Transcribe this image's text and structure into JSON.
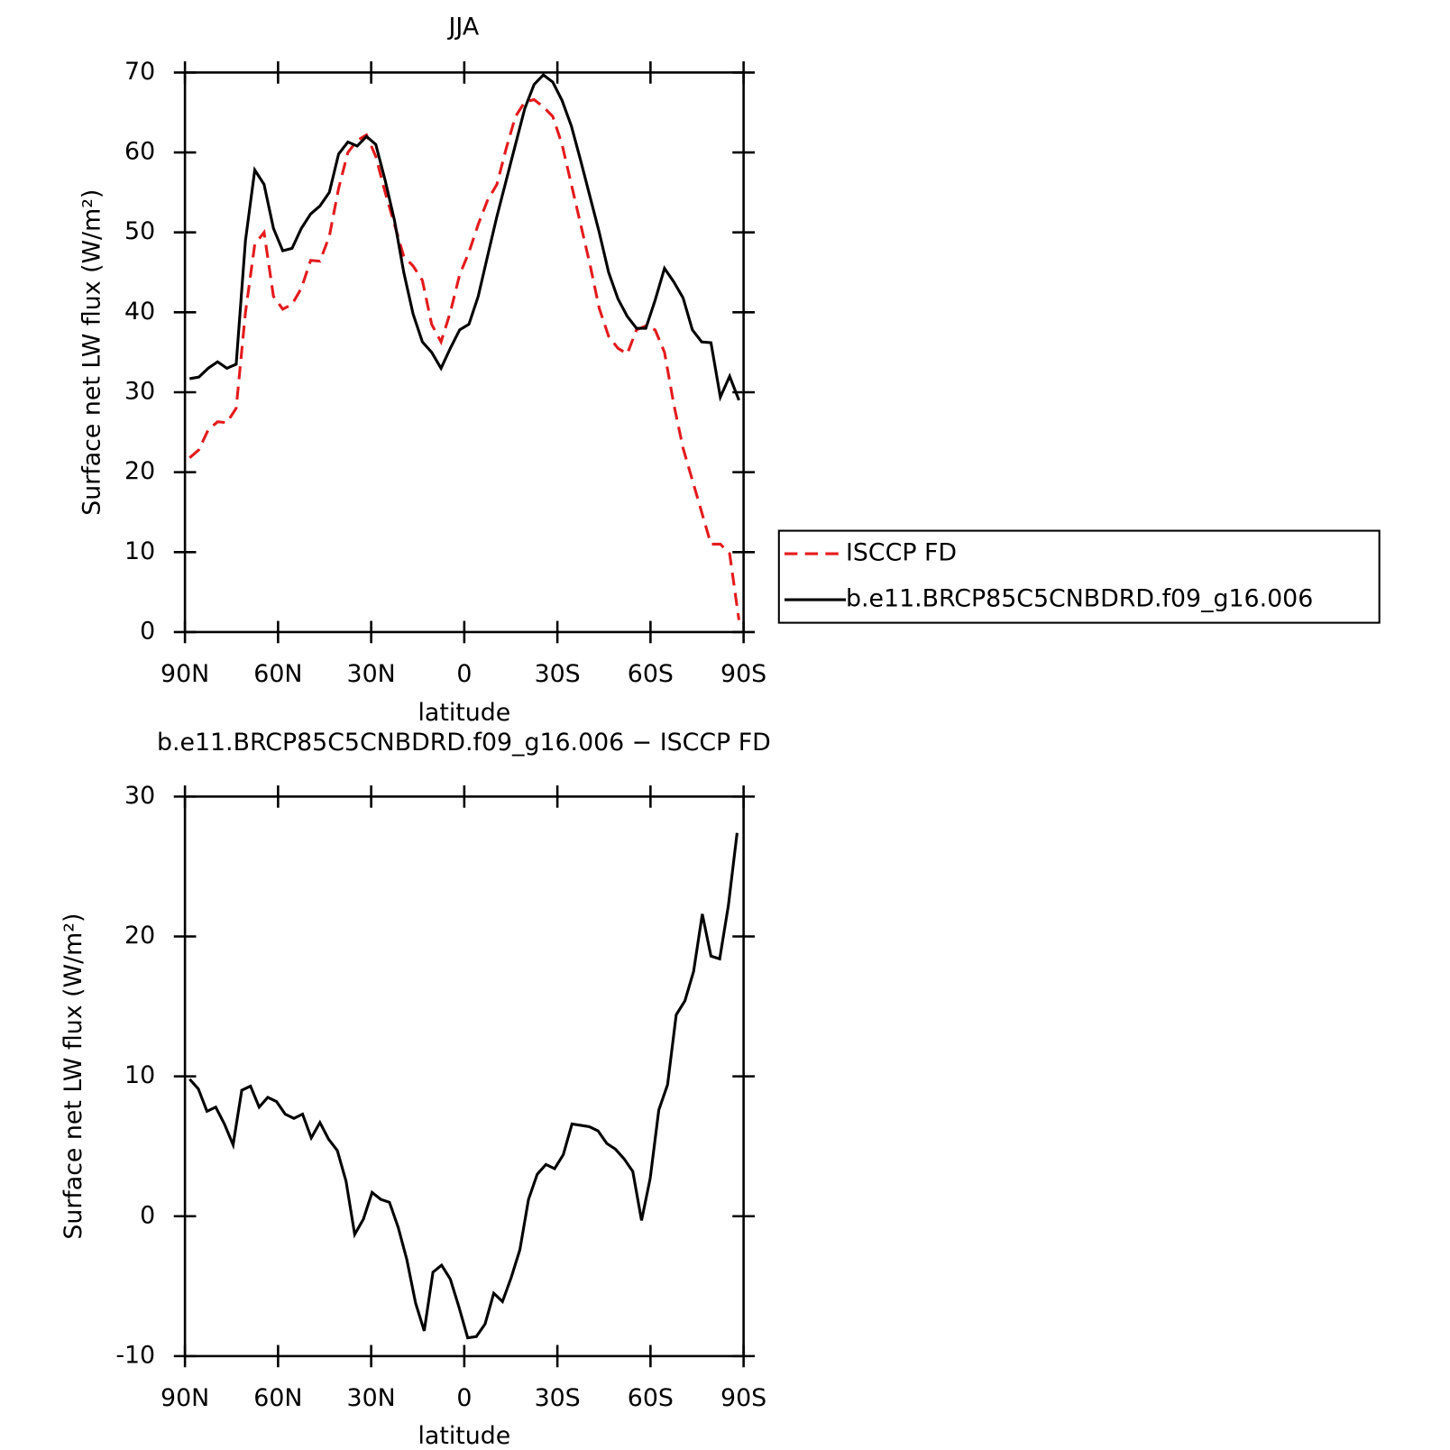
{
  "chart_data": [
    {
      "type": "line",
      "title": "JJA",
      "xlabel": "latitude",
      "ylabel": "Surface net LW flux (W/m²)",
      "x": [
        88.5,
        85.5,
        82.5,
        79.5,
        76.5,
        73.5,
        70.5,
        67.5,
        64.5,
        61.5,
        58.5,
        55.5,
        52.5,
        49.5,
        46.5,
        43.5,
        40.5,
        37.5,
        34.5,
        31.5,
        28.5,
        25.5,
        22.5,
        19.5,
        16.5,
        13.5,
        10.5,
        7.5,
        4.5,
        1.5,
        -1.5,
        -4.5,
        -7.5,
        -10.5,
        -13.5,
        -16.5,
        -19.5,
        -22.5,
        -25.5,
        -28.5,
        -31.5,
        -34.5,
        -37.5,
        -40.5,
        -43.5,
        -46.5,
        -49.5,
        -52.5,
        -55.5,
        -58.5,
        -61.5,
        -64.5,
        -67.5,
        -70.5,
        -73.5,
        -76.5,
        -79.5,
        -82.5,
        -85.5,
        -88.5
      ],
      "series": [
        {
          "name": "ISCCP FD",
          "color": "#e41a1c",
          "style": "dashed",
          "values": [
            21.8,
            22.8,
            25.3,
            26.3,
            26.2,
            28,
            40,
            48.5,
            50,
            42,
            40.4,
            41,
            43,
            46.5,
            46.4,
            49.5,
            55.5,
            60,
            61.5,
            62.2,
            59.5,
            55,
            51,
            47,
            45.8,
            44,
            38.5,
            36.3,
            40,
            44.7,
            47.5,
            51,
            54,
            56,
            60.5,
            64.5,
            66.3,
            66.6,
            65.7,
            64.5,
            61,
            56,
            51,
            46,
            40.5,
            37,
            35.5,
            34.8,
            37.8,
            38.3,
            37.8,
            35,
            28.5,
            23,
            19,
            15,
            11,
            11,
            9.8,
            1.5
          ]
        },
        {
          "name": "b.e11.BRCP85C5CNBDRD.f09_g16.006",
          "color": "#000000",
          "style": "solid",
          "values": [
            31.7,
            31.9,
            33,
            33.8,
            33,
            33.5,
            49,
            57.8,
            56,
            50.5,
            47.7,
            48,
            50.5,
            52.3,
            53.3,
            55,
            59.8,
            61.3,
            60.8,
            62,
            61,
            56.5,
            51.5,
            45,
            39.8,
            36.3,
            35,
            33,
            35.5,
            37.8,
            38.5,
            42,
            47,
            52,
            56.5,
            61,
            65.5,
            68.5,
            69.7,
            68.8,
            66.5,
            63.3,
            59,
            54.5,
            50,
            45,
            41.7,
            39.5,
            38,
            38,
            41.5,
            45.5,
            43.8,
            41.8,
            37.8,
            36.3,
            36.2,
            29.4,
            32,
            29
          ]
        }
      ],
      "xlim": [
        90,
        -90
      ],
      "xticks": [
        {
          "value": 90,
          "label": "90N"
        },
        {
          "value": 60,
          "label": "60N"
        },
        {
          "value": 30,
          "label": "30N"
        },
        0,
        {
          "value": -30,
          "label": "30S"
        },
        {
          "value": -60,
          "label": "60S"
        },
        {
          "value": -90,
          "label": "90S"
        }
      ],
      "ylim": [
        0,
        70
      ],
      "yticks": [
        0,
        10,
        20,
        30,
        40,
        50,
        60,
        70
      ],
      "legend": "right"
    },
    {
      "type": "line",
      "title": "b.e11.BRCP85C5CNBDRD.f09_g16.006 − ISCCP FD",
      "xlabel": "latitude",
      "ylabel": "Surface net LW flux (W/m²)",
      "x": [
        88.5,
        85.7,
        82.9,
        80.1,
        77.3,
        74.5,
        71.7,
        68.9,
        66.1,
        63.3,
        60.5,
        57.7,
        54.9,
        52.1,
        49.3,
        46.5,
        43.7,
        40.9,
        38.1,
        35.3,
        32.5,
        29.7,
        26.9,
        24.1,
        21.3,
        18.5,
        15.7,
        12.9,
        10.1,
        7.3,
        4.5,
        1.7,
        -1.1,
        -3.9,
        -6.7,
        -9.5,
        -12.3,
        -15.1,
        -17.9,
        -20.7,
        -23.5,
        -26.3,
        -29.1,
        -31.9,
        -34.7,
        -37.5,
        -40.3,
        -43.1,
        -45.9,
        -48.7,
        -51.5,
        -54.3,
        -57.1,
        -59.9,
        -62.7,
        -65.5,
        -68.3,
        -71.1,
        -73.9,
        -76.7,
        -79.5,
        -82.3,
        -85.1,
        -87.9
      ],
      "series": [
        {
          "color": "#000000",
          "style": "solid",
          "values": [
            9.8,
            9.1,
            7.5,
            7.8,
            6.6,
            5.1,
            9.0,
            9.3,
            7.8,
            8.5,
            8.2,
            7.3,
            7.0,
            7.3,
            5.6,
            6.7,
            5.5,
            4.7,
            2.5,
            -1.3,
            -0.2,
            1.7,
            1.2,
            1.0,
            -0.8,
            -3.1,
            -6.2,
            -8.2,
            -4.0,
            -3.5,
            -4.5,
            -6.5,
            -8.7,
            -8.6,
            -7.7,
            -5.5,
            -6.1,
            -4.4,
            -2.4,
            1.2,
            3.0,
            3.7,
            3.4,
            4.4,
            6.6,
            6.5,
            6.4,
            6.1,
            5.2,
            4.8,
            4.1,
            3.2,
            -0.3,
            2.7,
            7.6,
            9.4,
            14.4,
            15.4,
            17.5,
            21.6,
            18.6,
            18.4,
            22.2,
            27.4
          ]
        }
      ],
      "xlim": [
        90,
        -90
      ],
      "xticks": [
        {
          "value": 90,
          "label": "90N"
        },
        {
          "value": 60,
          "label": "60N"
        },
        {
          "value": 30,
          "label": "30N"
        },
        0,
        {
          "value": -30,
          "label": "30S"
        },
        {
          "value": -60,
          "label": "60S"
        },
        {
          "value": -90,
          "label": "90S"
        }
      ],
      "ylim": [
        -10,
        30
      ],
      "yticks": [
        -10,
        0,
        10,
        20,
        30
      ]
    }
  ]
}
